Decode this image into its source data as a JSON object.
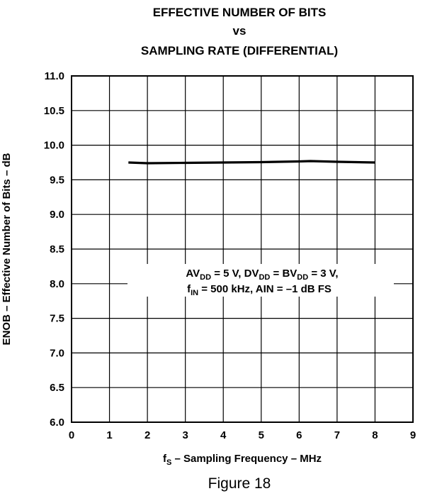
{
  "chart_data": {
    "type": "line",
    "title_lines": [
      "EFFECTIVE NUMBER OF BITS",
      "vs",
      "SAMPLING RATE (DIFFERENTIAL)"
    ],
    "xlabel": {
      "main": "f",
      "sub": "S",
      "rest": " – Sampling Frequency – MHz"
    },
    "ylabel": "ENOB – Effective Number of Bits – dB",
    "xlim": [
      0,
      9
    ],
    "ylim": [
      6.0,
      11.0
    ],
    "x_ticks": [
      "0",
      "1",
      "2",
      "3",
      "4",
      "5",
      "6",
      "7",
      "8",
      "9"
    ],
    "y_ticks": [
      "6.0",
      "6.5",
      "7.0",
      "7.5",
      "8.0",
      "8.5",
      "9.0",
      "9.5",
      "10.0",
      "10.5",
      "11.0"
    ],
    "grid": true,
    "series": [
      {
        "x": [
          1.5,
          2.0,
          3.0,
          4.0,
          5.0,
          6.0,
          6.3,
          7.0,
          8.0
        ],
        "y": [
          9.75,
          9.74,
          9.745,
          9.75,
          9.755,
          9.765,
          9.77,
          9.76,
          9.75
        ]
      }
    ],
    "annotation": {
      "line1": [
        {
          "t": "AV",
          "sub": false
        },
        {
          "t": "DD",
          "sub": true
        },
        {
          "t": " = 5 V, DV",
          "sub": false
        },
        {
          "t": "DD",
          "sub": true
        },
        {
          "t": " = BV",
          "sub": false
        },
        {
          "t": "DD",
          "sub": true
        },
        {
          "t": " = 3 V,",
          "sub": false
        }
      ],
      "line2": [
        {
          "t": "f",
          "sub": false
        },
        {
          "t": "IN",
          "sub": true
        },
        {
          "t": " = 500 kHz, AIN = –1 dB FS",
          "sub": false
        }
      ]
    }
  },
  "figure_caption": "Figure 18"
}
